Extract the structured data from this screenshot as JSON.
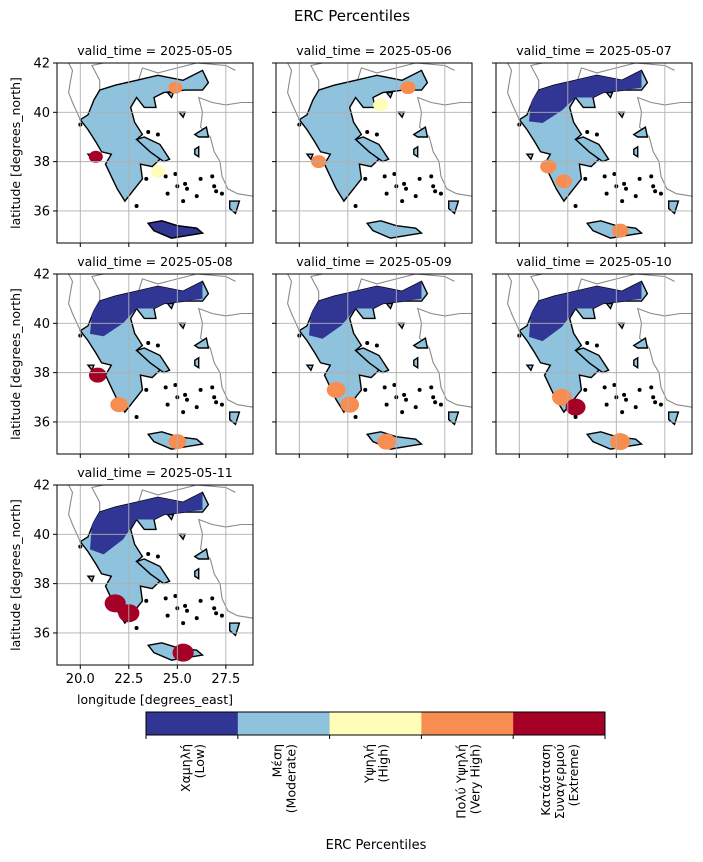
{
  "chart_data": {
    "type": "heatmap",
    "title": "ERC Percentiles",
    "xlabel": "longitude [degrees_east]",
    "ylabel": "latitude [degrees_north]",
    "xlim": [
      18.8,
      28.9
    ],
    "ylim": [
      34.7,
      42.0
    ],
    "xticks": [
      "20.0",
      "22.5",
      "25.0",
      "27.5"
    ],
    "xtick_values": [
      20.0,
      22.5,
      25.0,
      27.5
    ],
    "yticks": [
      "42",
      "40",
      "38",
      "36"
    ],
    "ytick_values": [
      42,
      40,
      38,
      36
    ],
    "grid": true,
    "panels": [
      {
        "title": "valid_time = 2025-05-05",
        "dominant": "Moderate",
        "hotspots": [
          {
            "lon": 20.8,
            "lat": 38.2,
            "class": 4
          },
          {
            "lon": 24.9,
            "lat": 41.0,
            "class": 3
          },
          {
            "lon": 24.0,
            "lat": 37.6,
            "class": 2
          }
        ]
      },
      {
        "title": "valid_time = 2025-05-06",
        "dominant": "Moderate",
        "hotspots": [
          {
            "lon": 25.6,
            "lat": 41.0,
            "class": 3
          },
          {
            "lon": 24.2,
            "lat": 40.3,
            "class": 2
          },
          {
            "lon": 21.0,
            "lat": 38.0,
            "class": 3
          }
        ]
      },
      {
        "title": "valid_time = 2025-05-07",
        "dominant": "Moderate",
        "hotspots": [
          {
            "lon": 21.5,
            "lat": 37.8,
            "class": 3
          },
          {
            "lon": 22.3,
            "lat": 37.2,
            "class": 3
          },
          {
            "lon": 25.2,
            "lat": 35.2,
            "class": 3
          }
        ]
      },
      {
        "title": "valid_time = 2025-05-08",
        "dominant": "Moderate",
        "hotspots": [
          {
            "lon": 20.9,
            "lat": 37.9,
            "class": 4
          },
          {
            "lon": 22.0,
            "lat": 36.7,
            "class": 3
          },
          {
            "lon": 25.0,
            "lat": 35.2,
            "class": 3
          }
        ]
      },
      {
        "title": "valid_time = 2025-05-09",
        "dominant": "Moderate",
        "hotspots": [
          {
            "lon": 21.9,
            "lat": 37.3,
            "class": 3
          },
          {
            "lon": 22.6,
            "lat": 36.7,
            "class": 3
          },
          {
            "lon": 24.5,
            "lat": 35.2,
            "class": 3
          }
        ]
      },
      {
        "title": "valid_time = 2025-05-10",
        "dominant": "Moderate",
        "hotspots": [
          {
            "lon": 22.2,
            "lat": 37.0,
            "class": 3
          },
          {
            "lon": 22.9,
            "lat": 36.6,
            "class": 4
          },
          {
            "lon": 25.2,
            "lat": 35.2,
            "class": 3
          }
        ]
      },
      {
        "title": "valid_time = 2025-05-11",
        "dominant": "Moderate",
        "hotspots": [
          {
            "lon": 21.8,
            "lat": 37.2,
            "class": 4
          },
          {
            "lon": 22.5,
            "lat": 36.8,
            "class": 4
          },
          {
            "lon": 25.3,
            "lat": 35.2,
            "class": 4
          }
        ]
      }
    ],
    "colorbar": {
      "label": "ERC Percentiles",
      "classes": [
        {
          "label": "Χαμηλή\n(Low)",
          "color": "#313695"
        },
        {
          "label": "Μέση\n(Moderate)",
          "color": "#8fc3dd"
        },
        {
          "label": "Υψηλή\n(High)",
          "color": "#fefeb9"
        },
        {
          "label": "Πολύ Υψηλή\n(Very High)",
          "color": "#f88d52"
        },
        {
          "label": "Κατάσταση\nΣυναγερμού\n(Extreme)",
          "color": "#a50026"
        }
      ]
    }
  }
}
